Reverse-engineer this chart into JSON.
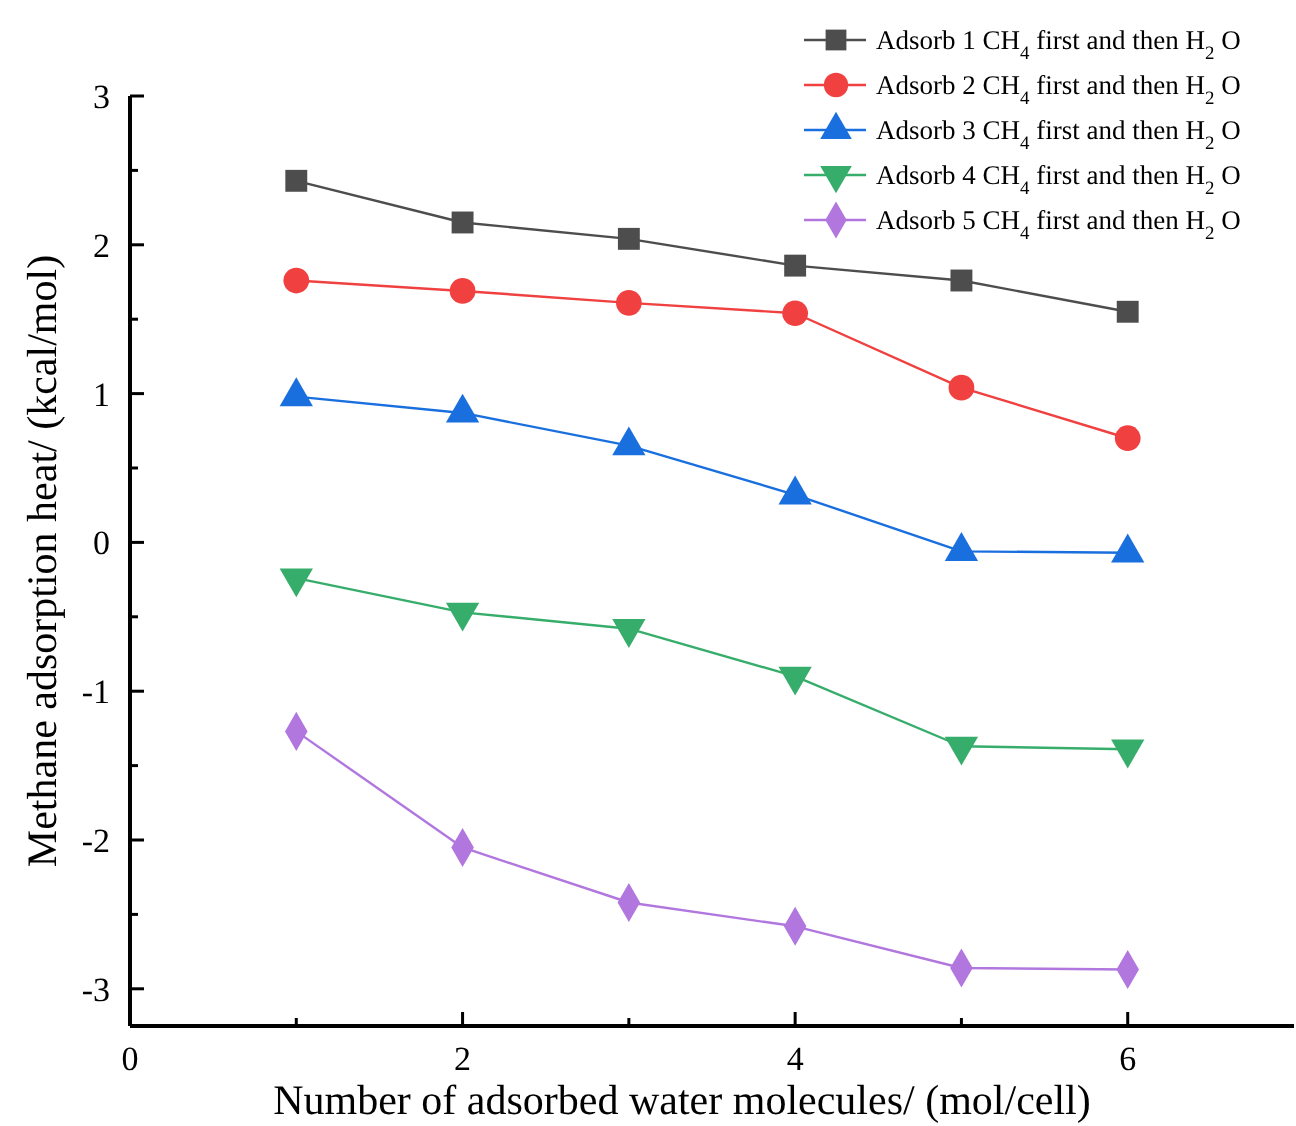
{
  "chart_data": {
    "type": "line",
    "xlabel": "Number of adsorbed water molecules/ (mol/cell)",
    "ylabel": "Methane adsorption heat/ (kcal/mol)",
    "x": [
      1,
      2,
      3,
      4,
      5,
      6
    ],
    "xlim": [
      0,
      7
    ],
    "xticks": [
      0,
      {
        "value": 1,
        "label": null
      },
      2,
      {
        "value": 3,
        "label": null
      },
      4,
      {
        "value": 5,
        "label": null
      },
      6
    ],
    "ylim": [
      -3.25,
      3
    ],
    "yticks": [
      3,
      {
        "value": 2.5,
        "label": null
      },
      2,
      {
        "value": 1.5,
        "label": null
      },
      1,
      {
        "value": 0.5,
        "label": null
      },
      0,
      {
        "value": -0.5,
        "label": null
      },
      -1,
      {
        "value": -1.5,
        "label": null
      },
      -2,
      {
        "value": -2.5,
        "label": null
      },
      -3
    ],
    "grid": false,
    "legend": "top right",
    "line_style": "solid",
    "series": [
      {
        "name": "Adsorb 1 CH$_{4}$ first and then H$_{2}$O",
        "color": "#4d4d4d",
        "marker": "square",
        "values": [
          2.43,
          2.15,
          2.04,
          1.86,
          1.76,
          1.55
        ]
      },
      {
        "name": "Adsorb 2 CH$_{4}$ first and then H$_{2}$O",
        "color": "#f04040",
        "marker": "circle",
        "values": [
          1.76,
          1.69,
          1.61,
          1.54,
          1.04,
          0.7
        ]
      },
      {
        "name": "Adsorb 3 CH$_{4}$ first and then H$_{2}$O",
        "color": "#1a6fdf",
        "marker": "triangle",
        "values": [
          0.98,
          0.87,
          0.65,
          0.32,
          -0.06,
          -0.07
        ]
      },
      {
        "name": "Adsorb 4 CH$_{4}$ first and then H$_{2}$O",
        "color": "#37ad6b",
        "marker": "triangle-down",
        "values": [
          -0.24,
          -0.47,
          -0.58,
          -0.9,
          -1.37,
          -1.39
        ]
      },
      {
        "name": "Adsorb 5 CH$_{4}$ first and then H$_{2}$O",
        "color": "#b177de",
        "marker": "diamond",
        "values": [
          -1.27,
          -2.05,
          -2.42,
          -2.58,
          -2.86,
          -2.87
        ]
      }
    ]
  }
}
